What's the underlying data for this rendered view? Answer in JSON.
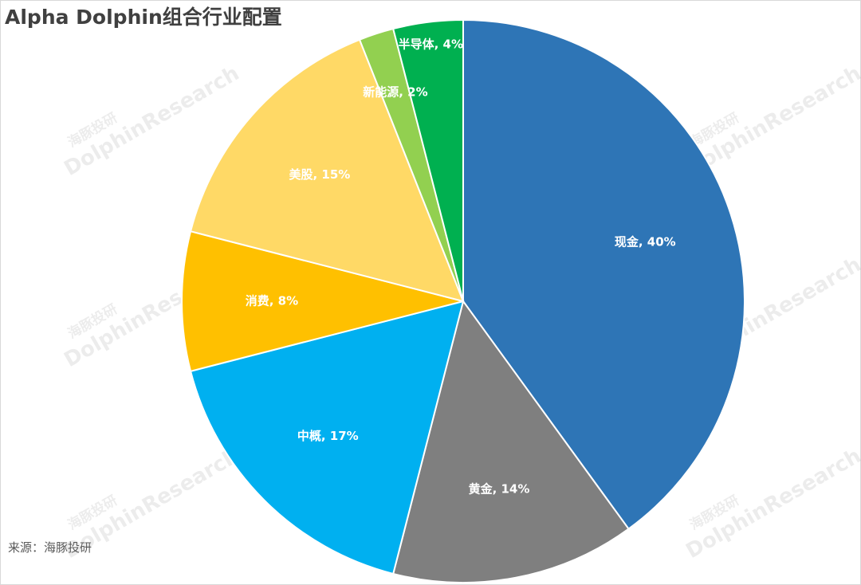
{
  "chart_data": {
    "type": "pie",
    "title": "Alpha Dolphin组合行业配置",
    "categories": [
      "现金",
      "黄金",
      "中概",
      "消费",
      "美股",
      "新能源",
      "半导体"
    ],
    "values": [
      40,
      14,
      17,
      8,
      15,
      2,
      4
    ],
    "value_labels": [
      "现金, 40%",
      "黄金, 14%",
      "中概, 17%",
      "消费, 8%",
      "美股, 15%",
      "新能源, 2%",
      "半导体, 4%"
    ],
    "colors": [
      "#2e75b6",
      "#7f7f7f",
      "#00b0f0",
      "#ffc000",
      "#ffd966",
      "#92d050",
      "#00b050"
    ],
    "source": "来源：海豚投研",
    "watermark": [
      "海豚投研",
      "DolphinResearch"
    ]
  }
}
